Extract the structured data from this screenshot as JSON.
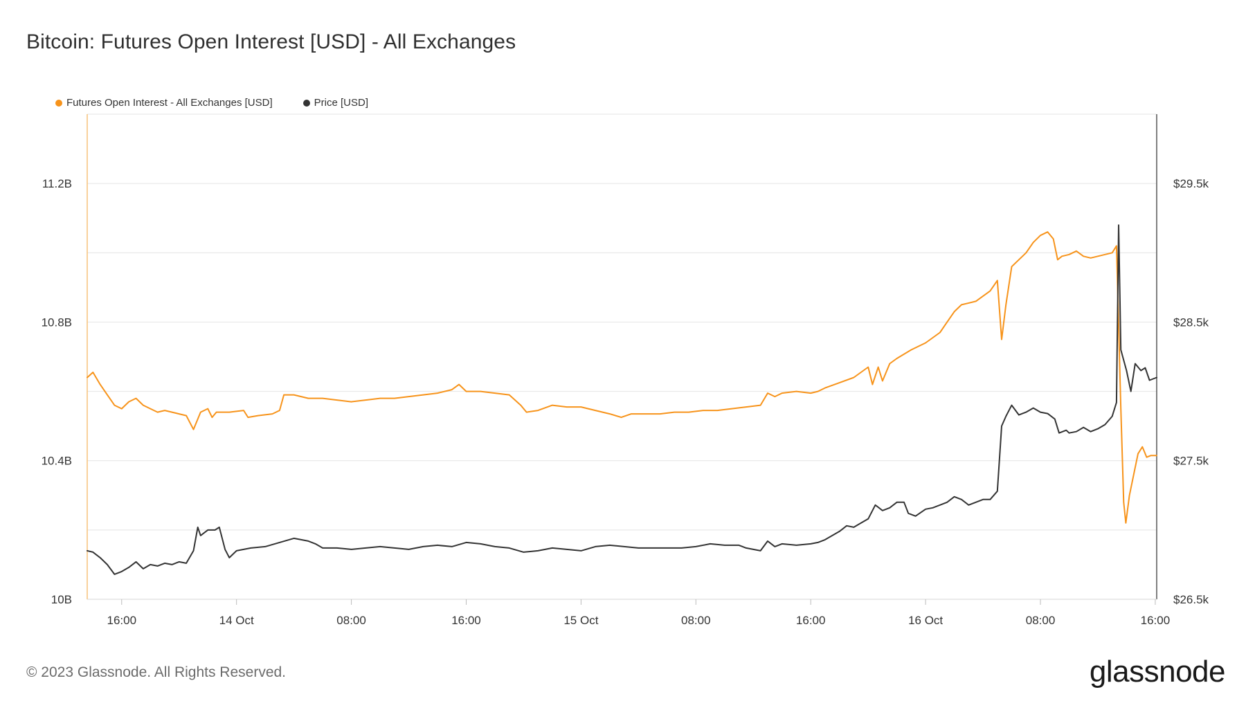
{
  "title": "Bitcoin: Futures Open Interest [USD] - All Exchanges",
  "footer": "© 2023 Glassnode. All Rights Reserved.",
  "brand": "glassnode",
  "legend": [
    {
      "label": "Futures Open Interest - All Exchanges [USD]",
      "color": "#f7931a"
    },
    {
      "label": "Price [USD]",
      "color": "#333333"
    }
  ],
  "chart_data": {
    "type": "line",
    "x_ticks": [
      {
        "t": 3,
        "label": "16:00"
      },
      {
        "t": 11,
        "label": "14 Oct"
      },
      {
        "t": 19,
        "label": "08:00"
      },
      {
        "t": 27,
        "label": "16:00"
      },
      {
        "t": 35,
        "label": "15 Oct"
      },
      {
        "t": 43,
        "label": "08:00"
      },
      {
        "t": 51,
        "label": "16:00"
      },
      {
        "t": 59,
        "label": "16 Oct"
      },
      {
        "t": 67,
        "label": "08:00"
      },
      {
        "t": 75,
        "label": "16:00"
      }
    ],
    "xlim": [
      0.6,
      75.1
    ],
    "left_axis": {
      "ticks": [
        "11.2B",
        "10.8B",
        "10.4B",
        "10B"
      ],
      "values": [
        11.2,
        10.8,
        10.4,
        10.0
      ],
      "ylim": [
        10.0,
        11.4
      ]
    },
    "right_axis": {
      "ticks": [
        "$29.5k",
        "$28.5k",
        "$27.5k",
        "$26.5k"
      ],
      "values": [
        29.5,
        28.5,
        27.5,
        26.5
      ],
      "ylim": [
        26.5,
        30.0
      ]
    },
    "series": [
      {
        "name": "Futures Open Interest - All Exchanges [USD]",
        "unit": "B USD",
        "axis": "left",
        "color": "#f7931a",
        "points": [
          [
            0.6,
            10.64
          ],
          [
            1.0,
            10.655
          ],
          [
            1.5,
            10.62
          ],
          [
            2.0,
            10.59
          ],
          [
            2.5,
            10.56
          ],
          [
            3.0,
            10.55
          ],
          [
            3.5,
            10.57
          ],
          [
            4.0,
            10.58
          ],
          [
            4.5,
            10.56
          ],
          [
            5.0,
            10.55
          ],
          [
            5.5,
            10.54
          ],
          [
            6.0,
            10.545
          ],
          [
            6.5,
            10.54
          ],
          [
            7.0,
            10.535
          ],
          [
            7.5,
            10.53
          ],
          [
            8.0,
            10.49
          ],
          [
            8.5,
            10.54
          ],
          [
            9.0,
            10.55
          ],
          [
            9.3,
            10.525
          ],
          [
            9.6,
            10.54
          ],
          [
            10.5,
            10.54
          ],
          [
            11.5,
            10.545
          ],
          [
            11.8,
            10.525
          ],
          [
            12.5,
            10.53
          ],
          [
            13.5,
            10.535
          ],
          [
            14.0,
            10.545
          ],
          [
            14.3,
            10.59
          ],
          [
            15.0,
            10.59
          ],
          [
            16.0,
            10.58
          ],
          [
            17.0,
            10.58
          ],
          [
            18.0,
            10.575
          ],
          [
            19.0,
            10.57
          ],
          [
            20.0,
            10.575
          ],
          [
            21.0,
            10.58
          ],
          [
            22.0,
            10.58
          ],
          [
            23.0,
            10.585
          ],
          [
            24.0,
            10.59
          ],
          [
            25.0,
            10.595
          ],
          [
            26.0,
            10.605
          ],
          [
            26.5,
            10.62
          ],
          [
            27.0,
            10.6
          ],
          [
            28.0,
            10.6
          ],
          [
            29.0,
            10.595
          ],
          [
            30.0,
            10.59
          ],
          [
            30.8,
            10.56
          ],
          [
            31.2,
            10.54
          ],
          [
            32.0,
            10.545
          ],
          [
            33.0,
            10.56
          ],
          [
            34.0,
            10.555
          ],
          [
            35.0,
            10.555
          ],
          [
            36.0,
            10.545
          ],
          [
            37.0,
            10.535
          ],
          [
            37.8,
            10.525
          ],
          [
            38.5,
            10.535
          ],
          [
            39.5,
            10.535
          ],
          [
            40.5,
            10.535
          ],
          [
            41.5,
            10.54
          ],
          [
            42.5,
            10.54
          ],
          [
            43.5,
            10.545
          ],
          [
            44.5,
            10.545
          ],
          [
            45.5,
            10.55
          ],
          [
            46.5,
            10.555
          ],
          [
            47.5,
            10.56
          ],
          [
            48.0,
            10.595
          ],
          [
            48.5,
            10.585
          ],
          [
            49.0,
            10.595
          ],
          [
            50.0,
            10.6
          ],
          [
            51.0,
            10.595
          ],
          [
            51.5,
            10.6
          ],
          [
            52.0,
            10.61
          ],
          [
            53.0,
            10.625
          ],
          [
            54.0,
            10.64
          ],
          [
            54.5,
            10.655
          ],
          [
            55.0,
            10.67
          ],
          [
            55.3,
            10.62
          ],
          [
            55.7,
            10.67
          ],
          [
            56.0,
            10.63
          ],
          [
            56.5,
            10.68
          ],
          [
            57.0,
            10.695
          ],
          [
            58.0,
            10.72
          ],
          [
            59.0,
            10.74
          ],
          [
            60.0,
            10.77
          ],
          [
            60.5,
            10.8
          ],
          [
            61.0,
            10.83
          ],
          [
            61.5,
            10.85
          ],
          [
            62.5,
            10.86
          ],
          [
            63.5,
            10.89
          ],
          [
            64.0,
            10.92
          ],
          [
            64.3,
            10.75
          ],
          [
            64.6,
            10.85
          ],
          [
            65.0,
            10.96
          ],
          [
            65.5,
            10.98
          ],
          [
            66.0,
            11.0
          ],
          [
            66.5,
            11.03
          ],
          [
            67.0,
            11.05
          ],
          [
            67.5,
            11.06
          ],
          [
            67.9,
            11.04
          ],
          [
            68.2,
            10.98
          ],
          [
            68.5,
            10.99
          ],
          [
            69.0,
            10.995
          ],
          [
            69.5,
            11.005
          ],
          [
            70.0,
            10.99
          ],
          [
            70.5,
            10.985
          ],
          [
            71.0,
            10.99
          ],
          [
            71.5,
            10.995
          ],
          [
            72.0,
            11.0
          ],
          [
            72.3,
            11.02
          ],
          [
            72.6,
            10.55
          ],
          [
            72.8,
            10.28
          ],
          [
            72.95,
            10.22
          ],
          [
            73.2,
            10.3
          ],
          [
            73.5,
            10.36
          ],
          [
            73.8,
            10.42
          ],
          [
            74.1,
            10.44
          ],
          [
            74.4,
            10.41
          ],
          [
            74.7,
            10.415
          ],
          [
            75.1,
            10.415
          ]
        ]
      },
      {
        "name": "Price [USD]",
        "unit": "k USD",
        "axis": "right",
        "color": "#333333",
        "points": [
          [
            0.6,
            26.85
          ],
          [
            1.0,
            26.84
          ],
          [
            1.5,
            26.8
          ],
          [
            2.0,
            26.75
          ],
          [
            2.5,
            26.68
          ],
          [
            3.0,
            26.7
          ],
          [
            3.5,
            26.73
          ],
          [
            4.0,
            26.77
          ],
          [
            4.5,
            26.72
          ],
          [
            5.0,
            26.75
          ],
          [
            5.5,
            26.74
          ],
          [
            6.0,
            26.76
          ],
          [
            6.5,
            26.75
          ],
          [
            7.0,
            26.77
          ],
          [
            7.5,
            26.76
          ],
          [
            8.0,
            26.85
          ],
          [
            8.3,
            27.02
          ],
          [
            8.5,
            26.96
          ],
          [
            9.0,
            27.0
          ],
          [
            9.5,
            27.0
          ],
          [
            9.8,
            27.02
          ],
          [
            10.2,
            26.86
          ],
          [
            10.5,
            26.8
          ],
          [
            11.0,
            26.85
          ],
          [
            12.0,
            26.87
          ],
          [
            13.0,
            26.88
          ],
          [
            14.0,
            26.91
          ],
          [
            15.0,
            26.94
          ],
          [
            16.0,
            26.92
          ],
          [
            16.5,
            26.9
          ],
          [
            17.0,
            26.87
          ],
          [
            18.0,
            26.87
          ],
          [
            19.0,
            26.86
          ],
          [
            20.0,
            26.87
          ],
          [
            21.0,
            26.88
          ],
          [
            22.0,
            26.87
          ],
          [
            23.0,
            26.86
          ],
          [
            24.0,
            26.88
          ],
          [
            25.0,
            26.89
          ],
          [
            26.0,
            26.88
          ],
          [
            27.0,
            26.91
          ],
          [
            28.0,
            26.9
          ],
          [
            29.0,
            26.88
          ],
          [
            30.0,
            26.87
          ],
          [
            31.0,
            26.84
          ],
          [
            32.0,
            26.85
          ],
          [
            33.0,
            26.87
          ],
          [
            34.0,
            26.86
          ],
          [
            35.0,
            26.85
          ],
          [
            36.0,
            26.88
          ],
          [
            37.0,
            26.89
          ],
          [
            38.0,
            26.88
          ],
          [
            39.0,
            26.87
          ],
          [
            40.0,
            26.87
          ],
          [
            41.0,
            26.87
          ],
          [
            42.0,
            26.87
          ],
          [
            43.0,
            26.88
          ],
          [
            44.0,
            26.9
          ],
          [
            45.0,
            26.89
          ],
          [
            46.0,
            26.89
          ],
          [
            46.5,
            26.87
          ],
          [
            47.0,
            26.86
          ],
          [
            47.5,
            26.85
          ],
          [
            48.0,
            26.92
          ],
          [
            48.5,
            26.88
          ],
          [
            49.0,
            26.9
          ],
          [
            50.0,
            26.89
          ],
          [
            51.0,
            26.9
          ],
          [
            51.5,
            26.91
          ],
          [
            52.0,
            26.93
          ],
          [
            52.5,
            26.96
          ],
          [
            53.0,
            26.99
          ],
          [
            53.5,
            27.03
          ],
          [
            54.0,
            27.02
          ],
          [
            54.5,
            27.05
          ],
          [
            55.0,
            27.08
          ],
          [
            55.5,
            27.18
          ],
          [
            56.0,
            27.14
          ],
          [
            56.5,
            27.16
          ],
          [
            57.0,
            27.2
          ],
          [
            57.5,
            27.2
          ],
          [
            57.8,
            27.12
          ],
          [
            58.3,
            27.1
          ],
          [
            59.0,
            27.15
          ],
          [
            59.5,
            27.16
          ],
          [
            60.0,
            27.18
          ],
          [
            60.5,
            27.2
          ],
          [
            61.0,
            27.24
          ],
          [
            61.5,
            27.22
          ],
          [
            62.0,
            27.18
          ],
          [
            62.5,
            27.2
          ],
          [
            63.0,
            27.22
          ],
          [
            63.5,
            27.22
          ],
          [
            64.0,
            27.28
          ],
          [
            64.3,
            27.75
          ],
          [
            64.6,
            27.82
          ],
          [
            65.0,
            27.9
          ],
          [
            65.5,
            27.83
          ],
          [
            66.0,
            27.85
          ],
          [
            66.5,
            27.88
          ],
          [
            67.0,
            27.85
          ],
          [
            67.5,
            27.84
          ],
          [
            68.0,
            27.8
          ],
          [
            68.3,
            27.7
          ],
          [
            68.8,
            27.72
          ],
          [
            69.0,
            27.7
          ],
          [
            69.5,
            27.71
          ],
          [
            70.0,
            27.74
          ],
          [
            70.5,
            27.71
          ],
          [
            71.0,
            27.73
          ],
          [
            71.5,
            27.76
          ],
          [
            72.0,
            27.82
          ],
          [
            72.3,
            27.92
          ],
          [
            72.45,
            29.2
          ],
          [
            72.6,
            28.3
          ],
          [
            73.0,
            28.15
          ],
          [
            73.3,
            28.0
          ],
          [
            73.6,
            28.2
          ],
          [
            74.0,
            28.15
          ],
          [
            74.3,
            28.17
          ],
          [
            74.6,
            28.08
          ],
          [
            75.1,
            28.1
          ]
        ]
      }
    ],
    "grid": "horizontal"
  }
}
